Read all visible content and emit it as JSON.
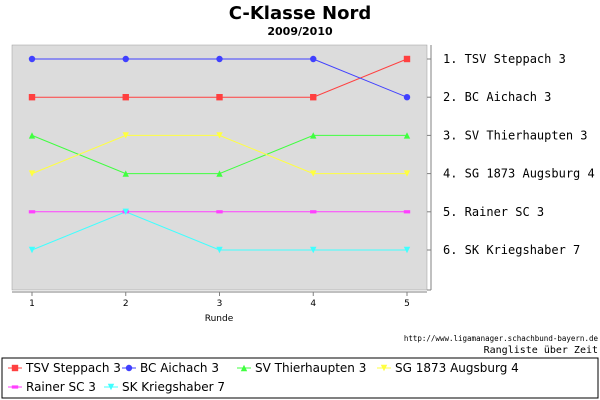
{
  "chart_data": {
    "type": "line",
    "title": "C-Klasse Nord",
    "subtitle": "2009/2010",
    "xlabel": "Runde",
    "x": [
      1,
      2,
      3,
      4,
      5
    ],
    "ylim": [
      1,
      6
    ],
    "y_inverted": true,
    "grid": false,
    "right_axis_labels": [
      "1.  TSV Steppach 3",
      "2.  BC Aichach 3",
      "3.  SV Thierhaupten 3",
      "4.  SG 1873 Augsburg 4",
      "5.  Rainer SC 3",
      "6.  SK Kriegshaber 7"
    ],
    "series": [
      {
        "name": "TSV Steppach 3",
        "values": [
          2,
          2,
          2,
          2,
          1
        ],
        "color": "#ff4040",
        "marker": "square"
      },
      {
        "name": "BC Aichach 3",
        "values": [
          1,
          1,
          1,
          1,
          2
        ],
        "color": "#4040ff",
        "marker": "circle"
      },
      {
        "name": "SV Thierhaupten 3",
        "values": [
          3,
          4,
          4,
          3,
          3
        ],
        "color": "#40ff40",
        "marker": "triangle-up"
      },
      {
        "name": "SG 1873 Augsburg 4",
        "values": [
          4,
          3,
          3,
          4,
          4
        ],
        "color": "#ffff40",
        "marker": "triangle-down"
      },
      {
        "name": "Rainer SC 3",
        "values": [
          5,
          5,
          5,
          5,
          5
        ],
        "color": "#ff40ff",
        "marker": "rect-wide"
      },
      {
        "name": "SK Kriegshaber 7",
        "values": [
          6,
          5,
          6,
          6,
          6
        ],
        "color": "#40ffff",
        "marker": "triangle-down"
      }
    ],
    "legend_position": "bottom",
    "source_text": "http://www.ligamanager.schachbund-bayern.de",
    "caption": "Rangliste über Zeit",
    "plot_background": "#dcdcdc"
  }
}
